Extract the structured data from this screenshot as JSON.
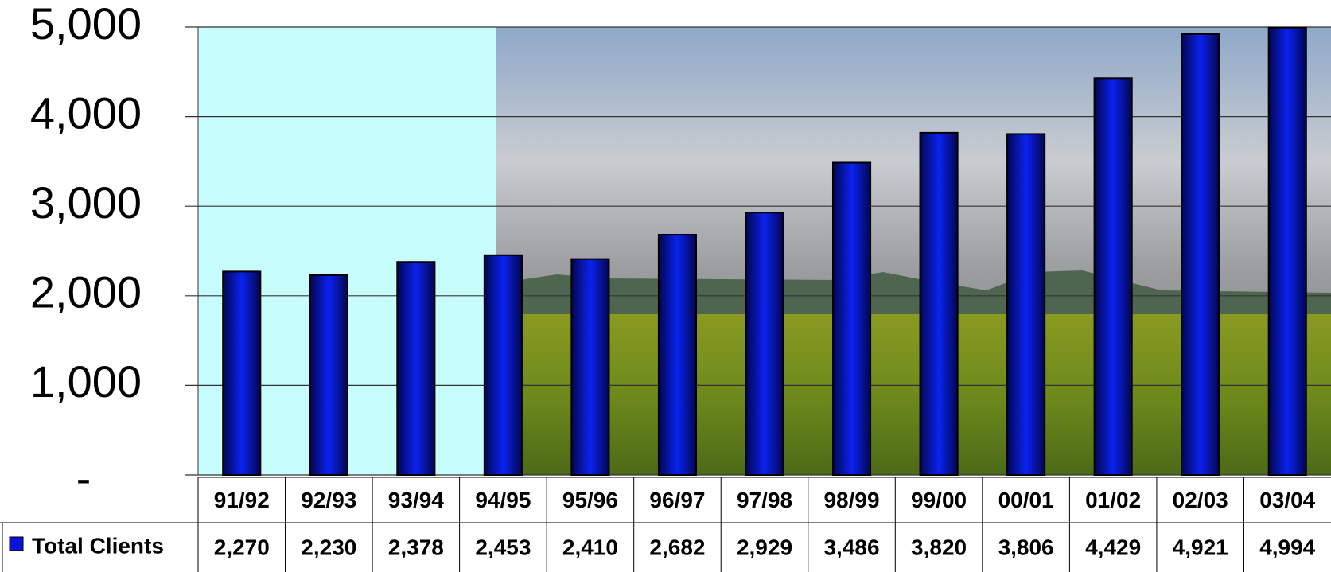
{
  "chart_data": {
    "type": "bar",
    "categories": [
      "91/92",
      "92/93",
      "93/94",
      "94/95",
      "95/96",
      "96/97",
      "97/98",
      "98/99",
      "99/00",
      "00/01",
      "01/02",
      "02/03",
      "03/04"
    ],
    "series": [
      {
        "name": "Total Clients",
        "color": "#0a14d8",
        "values": [
          2270,
          2230,
          2378,
          2453,
          2410,
          2682,
          2929,
          3486,
          3820,
          3806,
          4429,
          4921,
          4994
        ],
        "value_labels": [
          "2,270",
          "2,230",
          "2,378",
          "2,453",
          "2,410",
          "2,682",
          "2,929",
          "3,486",
          "3,820",
          "3,806",
          "4,429",
          "4,921",
          "4,994"
        ]
      }
    ],
    "ylim": [
      0,
      5000
    ],
    "yticks": [
      {
        "value": 0,
        "label": "-"
      },
      {
        "value": 1000,
        "label": "1,000"
      },
      {
        "value": 2000,
        "label": "2,000"
      },
      {
        "value": 3000,
        "label": "3,000"
      },
      {
        "value": 4000,
        "label": "4,000"
      },
      {
        "value": 5000,
        "label": "5,000"
      }
    ],
    "grid": true
  }
}
